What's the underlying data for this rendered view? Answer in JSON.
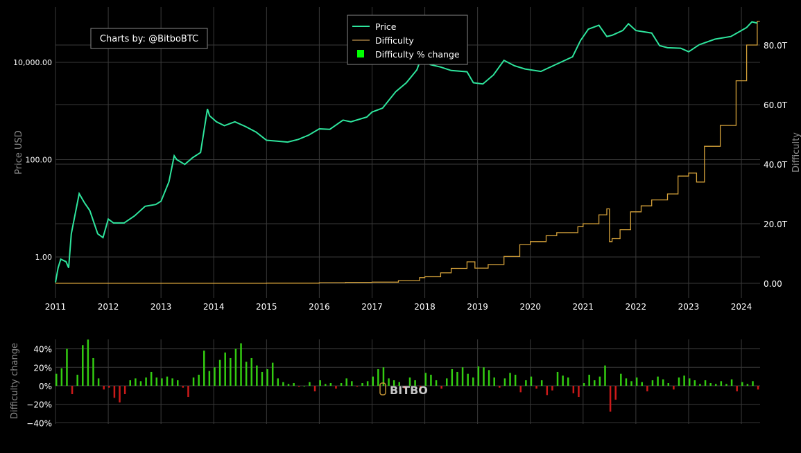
{
  "chart_data": [
    {
      "type": "line",
      "credit": "Charts by: @BitboBTC",
      "legend": {
        "placement": "top-center",
        "entries": [
          "Price",
          "Difficulty",
          "Difficulty % change"
        ]
      },
      "xlabel": "",
      "x_ticks": [
        "2011",
        "2012",
        "2013",
        "2014",
        "2015",
        "2016",
        "2017",
        "2018",
        "2019",
        "2020",
        "2021",
        "2022",
        "2023",
        "2024"
      ],
      "grid": true,
      "y_left": {
        "label": "Price USD",
        "scale": "log",
        "ticks": [
          "1.00",
          "100.00",
          "10,000.00"
        ],
        "tick_values": [
          1,
          100,
          10000
        ]
      },
      "y_right": {
        "label": "Difficulty",
        "scale": "linear",
        "ticks": [
          "0.00",
          "20.0T",
          "40.0T",
          "60.0T",
          "80.0T"
        ],
        "tick_values": [
          0,
          20,
          40,
          60,
          80
        ],
        "unit": "T"
      },
      "series": [
        {
          "name": "Price",
          "color": "#2ee59d",
          "axis": "left",
          "x": [
            2011.0,
            2011.05,
            2011.1,
            2011.2,
            2011.25,
            2011.3,
            2011.45,
            2011.55,
            2011.65,
            2011.8,
            2011.9,
            2012.0,
            2012.1,
            2012.3,
            2012.5,
            2012.7,
            2012.9,
            2013.0,
            2013.15,
            2013.25,
            2013.3,
            2013.45,
            2013.6,
            2013.75,
            2013.88,
            2013.92,
            2014.05,
            2014.2,
            2014.4,
            2014.6,
            2014.8,
            2015.0,
            2015.2,
            2015.4,
            2015.6,
            2015.8,
            2016.0,
            2016.2,
            2016.45,
            2016.6,
            2016.9,
            2017.0,
            2017.2,
            2017.45,
            2017.65,
            2017.85,
            2017.96,
            2018.1,
            2018.3,
            2018.5,
            2018.8,
            2018.92,
            2019.1,
            2019.3,
            2019.5,
            2019.7,
            2019.9,
            2020.2,
            2020.5,
            2020.8,
            2020.95,
            2021.1,
            2021.3,
            2021.45,
            2021.55,
            2021.75,
            2021.86,
            2022.0,
            2022.3,
            2022.45,
            2022.6,
            2022.85,
            2023.0,
            2023.2,
            2023.5,
            2023.8,
            2023.95,
            2024.1,
            2024.2,
            2024.3
          ],
          "y": [
            0.3,
            0.6,
            0.9,
            0.8,
            0.6,
            3,
            20,
            13,
            9,
            3,
            2.5,
            6,
            5,
            5,
            7,
            11,
            12,
            14,
            35,
            120,
            100,
            80,
            110,
            140,
            1100,
            800,
            600,
            500,
            600,
            480,
            370,
            250,
            240,
            230,
            260,
            320,
            430,
            420,
            650,
            600,
            750,
            950,
            1150,
            2500,
            3800,
            7000,
            15000,
            9000,
            8000,
            6800,
            6400,
            3800,
            3600,
            5500,
            11000,
            8500,
            7300,
            6500,
            9200,
            13000,
            28000,
            48000,
            58000,
            34000,
            36000,
            45000,
            62000,
            45000,
            40000,
            22000,
            20000,
            19500,
            16500,
            23000,
            30000,
            34000,
            42000,
            52000,
            68000,
            64000
          ]
        },
        {
          "name": "Difficulty",
          "color": "#d4a13a",
          "axis": "right",
          "step": true,
          "x": [
            2011.0,
            2015.0,
            2016.0,
            2016.5,
            2017.0,
            2017.5,
            2017.9,
            2018.0,
            2018.3,
            2018.5,
            2018.8,
            2018.95,
            2019.2,
            2019.5,
            2019.8,
            2020.0,
            2020.3,
            2020.5,
            2020.9,
            2021.0,
            2021.3,
            2021.45,
            2021.5,
            2021.55,
            2021.7,
            2021.9,
            2022.1,
            2022.3,
            2022.6,
            2022.8,
            2023.0,
            2023.15,
            2023.3,
            2023.6,
            2023.9,
            2024.1,
            2024.3
          ],
          "y": [
            0,
            0.05,
            0.2,
            0.3,
            0.4,
            0.9,
            1.9,
            2.2,
            3.5,
            5,
            7.2,
            5.1,
            6.3,
            9,
            13,
            14,
            16,
            17,
            19,
            20,
            23,
            25,
            14,
            15,
            18,
            24,
            26,
            28,
            30,
            36,
            37,
            34,
            46,
            53,
            68,
            80,
            88
          ]
        }
      ]
    },
    {
      "type": "bar",
      "ylabel": "Difficulty change",
      "y_ticks": [
        "40%",
        "20%",
        "0%",
        "−20%",
        "−40%"
      ],
      "tick_values": [
        40,
        20,
        0,
        -20,
        -40
      ],
      "ylim": [
        -40,
        50
      ],
      "colors": {
        "positive": "#33cc11",
        "negative": "#cc1a1a"
      },
      "x_start": 2011.0,
      "x_step_years": 0.1,
      "values": [
        13,
        19,
        40,
        -9,
        12,
        44,
        50,
        30,
        8,
        -4,
        -2,
        -13,
        -18,
        -9,
        6,
        8,
        5,
        9,
        15,
        9,
        8,
        10,
        8,
        6,
        -2,
        -12,
        9,
        12,
        38,
        16,
        20,
        28,
        36,
        30,
        40,
        46,
        26,
        30,
        22,
        15,
        18,
        25,
        8,
        4,
        2,
        3,
        -1,
        0,
        4,
        -6,
        6,
        2,
        3,
        -3,
        3,
        8,
        5,
        -1,
        3,
        5,
        10,
        18,
        20,
        8,
        6,
        4,
        -3,
        9,
        6,
        -5,
        14,
        12,
        6,
        -3,
        8,
        18,
        15,
        20,
        13,
        9,
        21,
        20,
        17,
        9,
        -2,
        8,
        14,
        12,
        -7,
        6,
        10,
        -3,
        6,
        -10,
        -5,
        15,
        11,
        9,
        -8,
        -12,
        3,
        12,
        6,
        10,
        22,
        -28,
        -15,
        13,
        8,
        5,
        9,
        4,
        -6,
        6,
        10,
        7,
        3,
        -4,
        9,
        11,
        8,
        6,
        2,
        6,
        3,
        2,
        5,
        2,
        7,
        -6,
        4,
        2,
        5,
        -4
      ]
    }
  ],
  "watermark": "BITBO"
}
